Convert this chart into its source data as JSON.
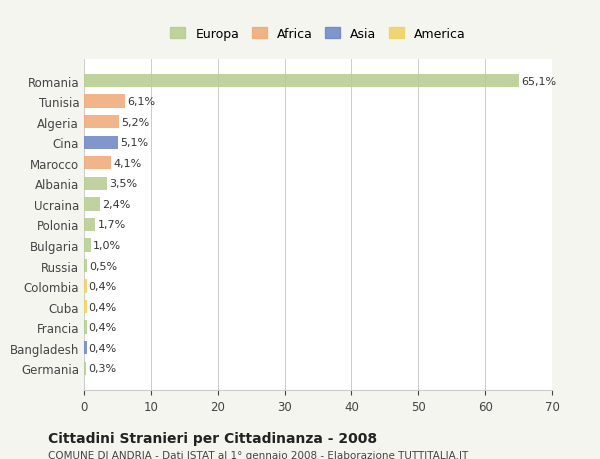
{
  "countries": [
    "Romania",
    "Tunisia",
    "Algeria",
    "Cina",
    "Marocco",
    "Albania",
    "Ucraina",
    "Polonia",
    "Bulgaria",
    "Russia",
    "Colombia",
    "Cuba",
    "Francia",
    "Bangladesh",
    "Germania"
  ],
  "values": [
    65.1,
    6.1,
    5.2,
    5.1,
    4.1,
    3.5,
    2.4,
    1.7,
    1.0,
    0.5,
    0.4,
    0.4,
    0.4,
    0.4,
    0.3
  ],
  "labels": [
    "65,1%",
    "6,1%",
    "5,2%",
    "5,1%",
    "4,1%",
    "3,5%",
    "2,4%",
    "1,7%",
    "1,0%",
    "0,5%",
    "0,4%",
    "0,4%",
    "0,4%",
    "0,4%",
    "0,3%"
  ],
  "continents": [
    "Europa",
    "Africa",
    "Africa",
    "Asia",
    "Africa",
    "Europa",
    "Europa",
    "Europa",
    "Europa",
    "Europa",
    "America",
    "America",
    "Europa",
    "Asia",
    "Europa"
  ],
  "colors": {
    "Europa": "#b5cc8e",
    "Africa": "#f0a875",
    "Asia": "#6b85c4",
    "America": "#f0d060"
  },
  "legend_order": [
    "Europa",
    "Africa",
    "Asia",
    "America"
  ],
  "xlim": [
    0,
    70
  ],
  "xticks": [
    0,
    10,
    20,
    30,
    40,
    50,
    60,
    70
  ],
  "title": "Cittadini Stranieri per Cittadinanza - 2008",
  "subtitle": "COMUNE DI ANDRIA - Dati ISTAT al 1° gennaio 2008 - Elaborazione TUTTITALIA.IT",
  "background_color": "#f5f5f0",
  "bar_background": "#ffffff",
  "grid_color": "#cccccc"
}
